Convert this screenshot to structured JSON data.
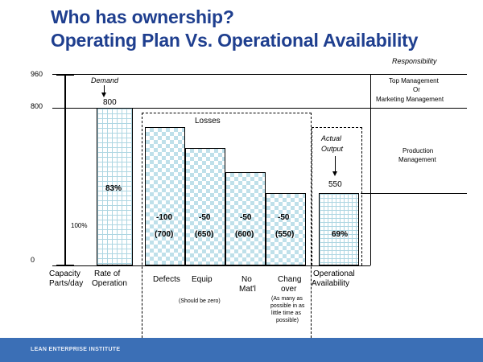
{
  "title": {
    "line1": "Who has ownership?",
    "line2": "Operating Plan Vs. Operational Availability"
  },
  "responsibility": {
    "header": "Responsibility",
    "top_mgmt": "Top Management",
    "or": "Or",
    "marketing": "Marketing Management",
    "production": "Production",
    "management": "Management"
  },
  "axis": {
    "tick_960": "960",
    "tick_800": "800",
    "tick_0": "0",
    "pct_100": "100%",
    "cap1": "Capacity",
    "cap2": "Parts/day"
  },
  "demand": {
    "label": "Demand",
    "value": "800"
  },
  "rate": {
    "pct": "83%",
    "label1": "Rate of",
    "label2": "Operation"
  },
  "losses": {
    "header": "Losses",
    "items": [
      {
        "delta": "-100",
        "value": "(700)"
      },
      {
        "delta": "-50",
        "value": "(650)"
      },
      {
        "delta": "-50",
        "value": "(600)"
      },
      {
        "delta": "-50",
        "value": "(550)"
      }
    ],
    "labels": [
      "Defects",
      "Equip",
      "No",
      "Mat'l",
      "Chang",
      "over"
    ],
    "note_zero": "(Should be zero)",
    "note_small1": "(As many as",
    "note_small2": "possible in as",
    "note_small3": "little time as",
    "note_small4": "possible)"
  },
  "actual": {
    "label1": "Actual",
    "label2": "Output",
    "value": "550",
    "pct": "69%",
    "label_a": "Operational",
    "label_b": "Availability"
  },
  "footer": "LEAN ENTERPRISE INSTITUTE",
  "chart_data": {
    "type": "bar",
    "categories": [
      "Rate of Operation",
      "Defects",
      "Equip",
      "No Mat'l",
      "Changover",
      "Operational Availability"
    ],
    "values": [
      800,
      700,
      650,
      600,
      550,
      550
    ],
    "ylim": [
      0,
      960
    ]
  }
}
